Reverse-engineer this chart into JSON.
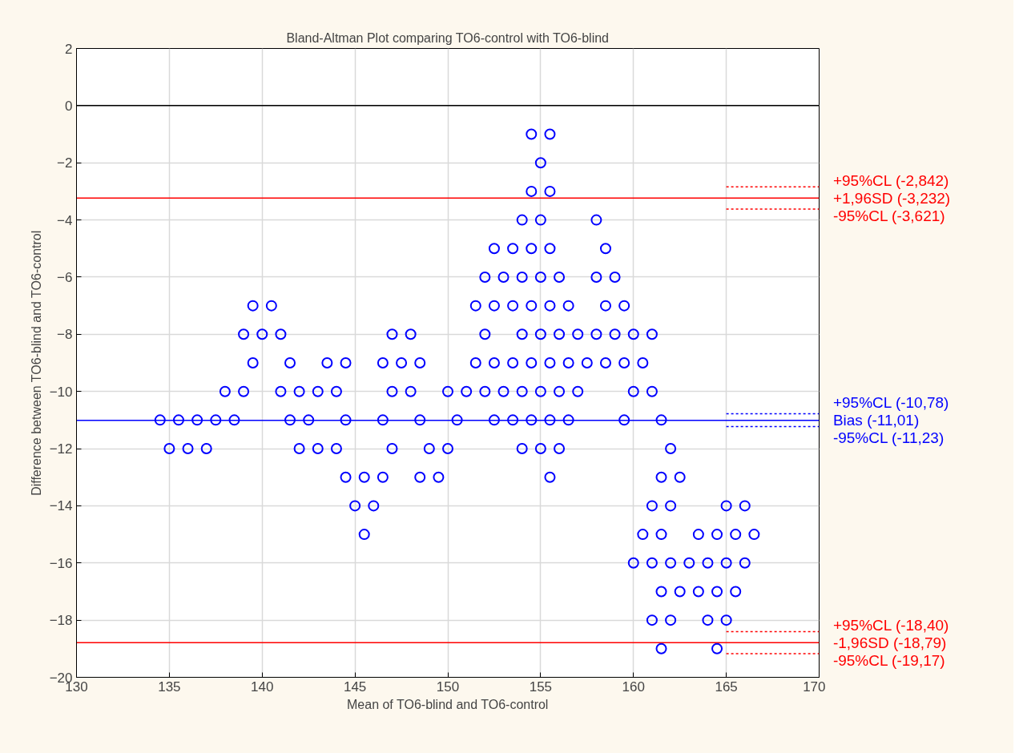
{
  "chart_data": {
    "type": "scatter",
    "title": "Bland-Altman Plot comparing TO6-control with TO6-blind",
    "xlabel": "Mean of TO6-blind and TO6-control",
    "ylabel": "Difference between TO6-blind and TO6-control",
    "x": [
      154.5,
      155.5,
      155,
      154.5,
      155.5,
      154,
      155,
      158,
      152.5,
      153.5,
      154.5,
      155.5,
      158.5,
      152,
      153,
      154,
      155,
      156,
      158,
      159,
      139.5,
      140.5,
      151.5,
      152.5,
      153.5,
      154.5,
      155.5,
      156.5,
      158.5,
      159.5,
      139,
      140,
      141,
      147,
      148,
      152,
      154,
      155,
      156,
      157,
      158,
      159,
      160,
      161,
      139.5,
      141.5,
      143.5,
      144.5,
      146.5,
      147.5,
      148.5,
      151.5,
      152.5,
      153.5,
      154.5,
      155.5,
      156.5,
      157.5,
      158.5,
      159.5,
      160.5,
      138,
      139,
      141,
      142,
      143,
      144,
      147,
      148,
      150,
      151,
      152,
      153,
      154,
      155,
      156,
      157,
      160,
      161,
      134.5,
      135.5,
      136.5,
      137.5,
      138.5,
      141.5,
      142.5,
      144.5,
      146.5,
      148.5,
      150.5,
      152.5,
      153.5,
      154.5,
      155.5,
      156.5,
      159.5,
      161.5,
      135,
      136,
      137,
      142,
      143,
      144,
      147,
      149,
      150,
      154,
      155,
      156,
      162,
      144.5,
      145.5,
      146.5,
      148.5,
      149.5,
      155.5,
      161.5,
      162.5,
      145,
      146,
      161,
      162,
      165,
      166,
      145.5,
      160.5,
      161.5,
      163.5,
      164.5,
      165.5,
      166.5,
      160,
      161,
      162,
      163,
      164,
      165,
      166,
      161.5,
      162.5,
      163.5,
      164.5,
      165.5,
      161,
      162,
      164,
      165,
      161.5,
      164.5
    ],
    "series": [
      {
        "color": "#0000ff",
        "values": [
          -1,
          -1,
          -2,
          -3,
          -3,
          -4,
          -4,
          -4,
          -5,
          -5,
          -5,
          -5,
          -5,
          -6,
          -6,
          -6,
          -6,
          -6,
          -6,
          -6,
          -7,
          -7,
          -7,
          -7,
          -7,
          -7,
          -7,
          -7,
          -7,
          -7,
          -8,
          -8,
          -8,
          -8,
          -8,
          -8,
          -8,
          -8,
          -8,
          -8,
          -8,
          -8,
          -8,
          -8,
          -9,
          -9,
          -9,
          -9,
          -9,
          -9,
          -9,
          -9,
          -9,
          -9,
          -9,
          -9,
          -9,
          -9,
          -9,
          -9,
          -9,
          -10,
          -10,
          -10,
          -10,
          -10,
          -10,
          -10,
          -10,
          -10,
          -10,
          -10,
          -10,
          -10,
          -10,
          -10,
          -10,
          -10,
          -10,
          -11,
          -11,
          -11,
          -11,
          -11,
          -11,
          -11,
          -11,
          -11,
          -11,
          -11,
          -11,
          -11,
          -11,
          -11,
          -11,
          -11,
          -11,
          -12,
          -12,
          -12,
          -12,
          -12,
          -12,
          -12,
          -12,
          -12,
          -12,
          -12,
          -12,
          -12,
          -13,
          -13,
          -13,
          -13,
          -13,
          -13,
          -13,
          -13,
          -14,
          -14,
          -14,
          -14,
          -14,
          -14,
          -15,
          -15,
          -15,
          -15,
          -15,
          -15,
          -15,
          -16,
          -16,
          -16,
          -16,
          -16,
          -16,
          -16,
          -17,
          -17,
          -17,
          -17,
          -17,
          -18,
          -18,
          -18,
          -18,
          -19,
          -19
        ]
      }
    ],
    "xlim": [
      130,
      170
    ],
    "ylim": [
      -20,
      2
    ],
    "xticks": [
      130,
      135,
      140,
      145,
      150,
      155,
      160,
      165,
      170
    ],
    "yticks": [
      -20,
      -18,
      -16,
      -14,
      -12,
      -10,
      -8,
      -6,
      -4,
      -2,
      0,
      2
    ],
    "ref_lines": [
      {
        "axis": "y",
        "value": 0,
        "color": "#000000",
        "line_style": "solid"
      },
      {
        "axis": "y",
        "value": -2.842,
        "label": "+95%CL (-2,842)",
        "color": "#ff0000",
        "line_style": "dotted"
      },
      {
        "axis": "y",
        "value": -3.232,
        "label": "+1,96SD (-3,232)",
        "color": "#ff0000",
        "line_style": "solid"
      },
      {
        "axis": "y",
        "value": -3.621,
        "label": "-95%CL (-3,621)",
        "color": "#ff0000",
        "line_style": "dotted"
      },
      {
        "axis": "y",
        "value": -10.78,
        "label": "+95%CL (-10,78)",
        "color": "#0000ff",
        "line_style": "dotted"
      },
      {
        "axis": "y",
        "value": -11.01,
        "label": "Bias (-11,01)",
        "color": "#0000ff",
        "line_style": "solid"
      },
      {
        "axis": "y",
        "value": -11.23,
        "label": "-95%CL (-11,23)",
        "color": "#0000ff",
        "line_style": "dotted"
      },
      {
        "axis": "y",
        "value": -18.4,
        "label": "+95%CL (-18,40)",
        "color": "#ff0000",
        "line_style": "dotted"
      },
      {
        "axis": "y",
        "value": -18.79,
        "label": "-1,96SD (-18,79)",
        "color": "#ff0000",
        "line_style": "solid"
      },
      {
        "axis": "y",
        "value": -19.17,
        "label": "-95%CL (-19,17)",
        "color": "#ff0000",
        "line_style": "dotted"
      }
    ],
    "grid": true,
    "marker": "circle"
  }
}
